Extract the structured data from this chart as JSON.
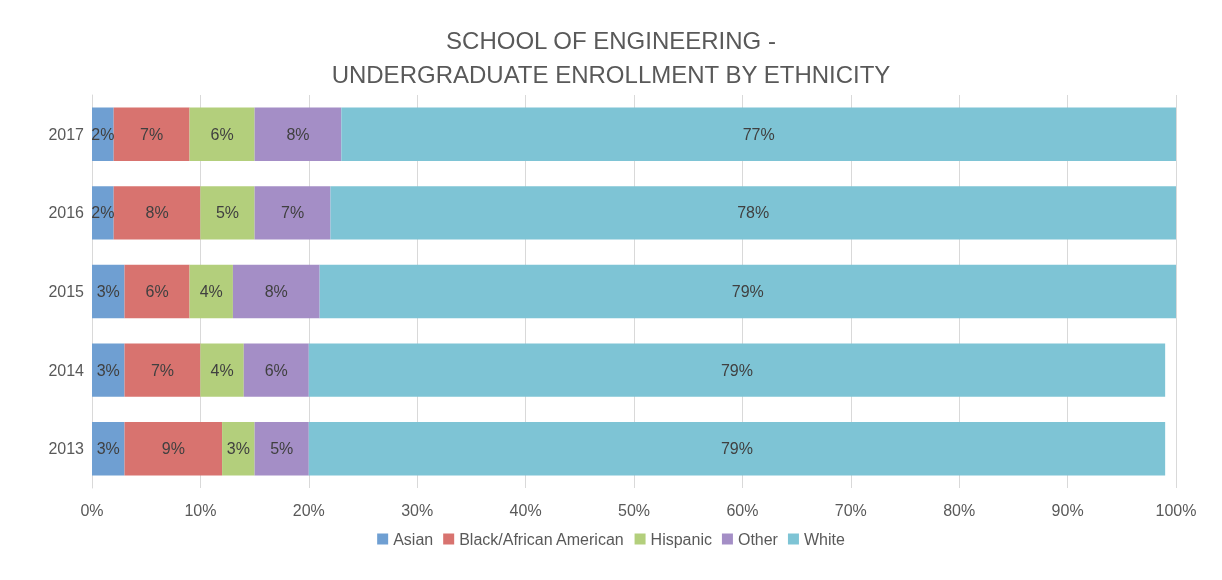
{
  "chart_data": {
    "type": "bar",
    "orientation": "horizontal",
    "stacked": true,
    "title": "SCHOOL OF ENGINEERING -\nUNDERGRADUATE ENROLLMENT BY ETHNICITY",
    "categories": [
      "2017",
      "2016",
      "2015",
      "2014",
      "2013"
    ],
    "series": [
      {
        "name": "Asian",
        "color": "#6f9fd2",
        "values": [
          2,
          2,
          3,
          3,
          3
        ],
        "value_labels": [
          "2%",
          "2%",
          "3%",
          "3%",
          "3%"
        ]
      },
      {
        "name": "Black/African American",
        "color": "#d8736f",
        "values": [
          7,
          8,
          6,
          7,
          9
        ],
        "value_labels": [
          "7%",
          "8%",
          "6%",
          "7%",
          "9%"
        ]
      },
      {
        "name": "Hispanic",
        "color": "#b3cf7c",
        "values": [
          6,
          5,
          4,
          4,
          3
        ],
        "value_labels": [
          "6%",
          "5%",
          "4%",
          "4%",
          "3%"
        ]
      },
      {
        "name": "Other",
        "color": "#a48ec6",
        "values": [
          8,
          7,
          8,
          6,
          5
        ],
        "value_labels": [
          "8%",
          "7%",
          "8%",
          "6%",
          "5%"
        ]
      },
      {
        "name": "White",
        "color": "#7ec4d5",
        "values": [
          77,
          78,
          79,
          79,
          79
        ],
        "value_labels": [
          "77%",
          "78%",
          "79%",
          "79%",
          "79%"
        ]
      }
    ],
    "xlim": [
      0,
      100
    ],
    "xticks": [
      {
        "value": 0,
        "label": "0%"
      },
      {
        "value": 10,
        "label": "10%"
      },
      {
        "value": 20,
        "label": "20%"
      },
      {
        "value": 30,
        "label": "30%"
      },
      {
        "value": 40,
        "label": "40%"
      },
      {
        "value": 50,
        "label": "50%"
      },
      {
        "value": 60,
        "label": "60%"
      },
      {
        "value": 70,
        "label": "70%"
      },
      {
        "value": 80,
        "label": "80%"
      },
      {
        "value": 90,
        "label": "90%"
      },
      {
        "value": 100,
        "label": "100%"
      }
    ],
    "grid": "x",
    "legend": "bottom"
  }
}
